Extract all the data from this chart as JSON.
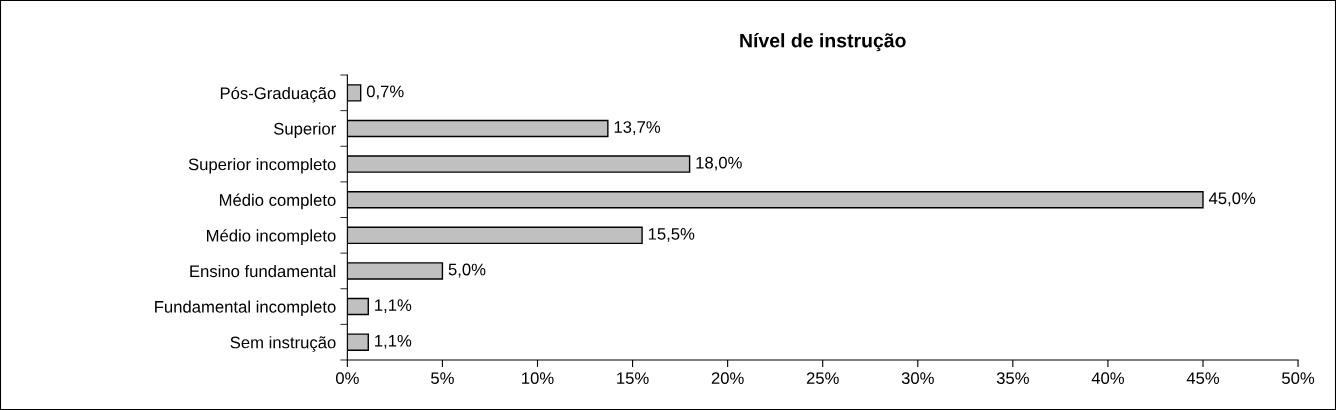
{
  "chart_data": {
    "type": "bar",
    "orientation": "horizontal",
    "title": "Nível de instrução",
    "categories": [
      "Pós-Graduação",
      "Superior",
      "Superior incompleto",
      "Médio completo",
      "Médio incompleto",
      "Ensino fundamental",
      "Fundamental incompleto",
      "Sem instrução"
    ],
    "values": [
      0.7,
      13.7,
      18.0,
      45.0,
      15.5,
      5.0,
      1.1,
      1.1
    ],
    "value_labels": [
      "0,7%",
      "13,7%",
      "18,0%",
      "45,0%",
      "15,5%",
      "5,0%",
      "1,1%",
      "1,1%"
    ],
    "color": "#c0c0c0",
    "xlim": [
      0,
      50
    ],
    "xticks": [
      {
        "value": 0,
        "label": "0%"
      },
      {
        "value": 5,
        "label": "5%"
      },
      {
        "value": 10,
        "label": "10%"
      },
      {
        "value": 15,
        "label": "15%"
      },
      {
        "value": 20,
        "label": "20%"
      },
      {
        "value": 25,
        "label": "25%"
      },
      {
        "value": 30,
        "label": "30%"
      },
      {
        "value": 35,
        "label": "35%"
      },
      {
        "value": 40,
        "label": "40%"
      },
      {
        "value": 45,
        "label": "45%"
      },
      {
        "value": 50,
        "label": "50%"
      }
    ],
    "grid": false,
    "legend": false
  }
}
